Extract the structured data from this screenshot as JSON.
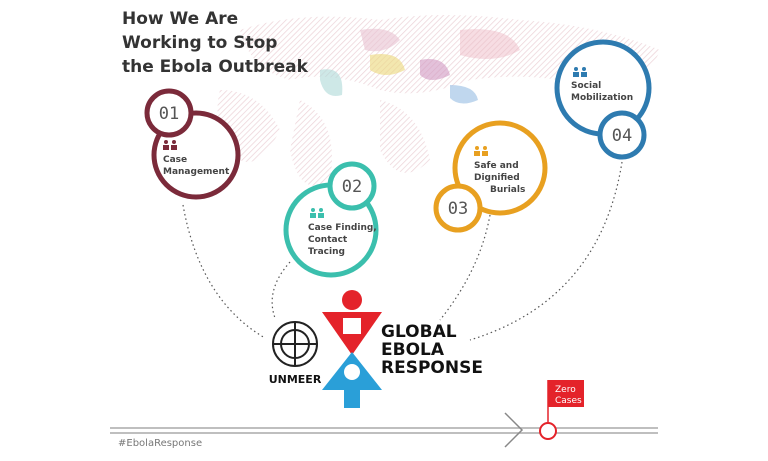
{
  "header": {
    "title_lines": [
      "How We Are",
      "Working to Stop",
      "the Ebola Outbreak"
    ]
  },
  "nodes": [
    {
      "number": "01",
      "label_lines": [
        "Case",
        "Management"
      ]
    },
    {
      "number": "02",
      "label_lines": [
        "Case Finding,",
        "Contact",
        "Tracing"
      ]
    },
    {
      "number": "03",
      "label_lines": [
        "Safe and",
        "Dignified",
        "Burials"
      ]
    },
    {
      "number": "04",
      "label_lines": [
        "Social",
        "Mobilization"
      ]
    }
  ],
  "logos": {
    "un": "UNMEER",
    "response_lines": [
      "GLOBAL",
      "EBOLA",
      "RESPONSE"
    ]
  },
  "goal_lines": [
    "Zero",
    "Cases"
  ],
  "hashtag": "#EbolaResponse"
}
